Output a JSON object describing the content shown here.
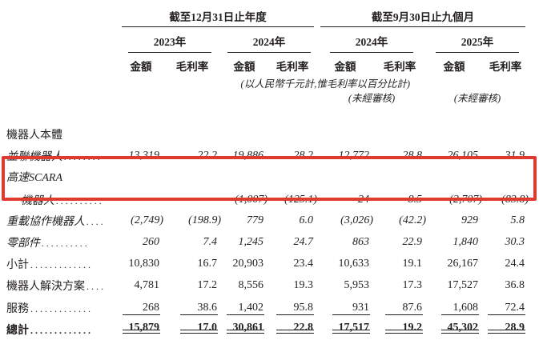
{
  "page": {
    "background": "#ffffff",
    "text_color": "#231f20",
    "highlight_color": "#e0392e"
  },
  "table": {
    "period_groups": [
      {
        "label": "截至12月31日止年度"
      },
      {
        "label": "截至9月30日止九個月"
      }
    ],
    "year_headers": [
      {
        "label": "2023年"
      },
      {
        "label": "2024年"
      },
      {
        "label": "2024年"
      },
      {
        "label": "2025年"
      }
    ],
    "measure_headers": {
      "amount": "金額",
      "margin": "毛利率"
    },
    "unit_note": "(以人民幣千元計,惟毛利率以百分比計)",
    "unaudited_note_2024": "(未經審核)",
    "unaudited_note_2025": "(未經審核)",
    "section_header": "機器人本體",
    "rows": [
      {
        "label": "並聯機器人",
        "leader": "........",
        "values": [
          "13,319",
          "22.2",
          "19,886",
          "28.2",
          "12,772",
          "28.8",
          "26,105",
          "31.9"
        ]
      },
      {
        "label_line1": "高速SCARA",
        "label_line2": "機器人",
        "leader": "..........",
        "values": [
          "–",
          "–",
          "(1,007)",
          "(125.1)",
          "24",
          "8.5",
          "(2,707)",
          "(83.8)"
        ]
      },
      {
        "label": "重載協作機器人",
        "leader": "....",
        "values": [
          "(2,749)",
          "(198.9)",
          "779",
          "6.0",
          "(3,026)",
          "(42.2)",
          "929",
          "5.8"
        ]
      },
      {
        "label": "零部件",
        "leader": "..........",
        "values": [
          "260",
          "7.4",
          "1,245",
          "24.7",
          "863",
          "22.9",
          "1,840",
          "30.3"
        ]
      },
      {
        "label": "小計",
        "leader": ".............",
        "values": [
          "10,830",
          "16.7",
          "20,903",
          "23.4",
          "10,633",
          "19.1",
          "26,167",
          "24.4"
        ]
      },
      {
        "label": "機器人解決方案",
        "leader": "....",
        "values": [
          "4,781",
          "17.2",
          "8,556",
          "19.3",
          "5,953",
          "17.3",
          "17,527",
          "36.8"
        ]
      },
      {
        "label": "服務",
        "leader": ".............",
        "values": [
          "268",
          "38.6",
          "1,402",
          "95.8",
          "931",
          "87.6",
          "1,608",
          "72.4"
        ]
      },
      {
        "label": "總計",
        "leader": ".............",
        "values": [
          "15,879",
          "17.0",
          "30,861",
          "22.8",
          "17,517",
          "19.2",
          "45,302",
          "28.9"
        ]
      }
    ]
  }
}
